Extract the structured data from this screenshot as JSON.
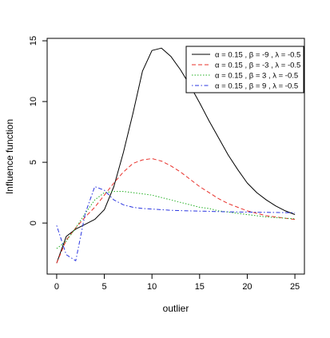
{
  "chart_data": {
    "type": "line",
    "xlabel": "outlier",
    "ylabel": "Influence function",
    "xlim": [
      -1,
      26
    ],
    "ylim": [
      -4.2,
      15.2
    ],
    "x_ticks": [
      0,
      5,
      10,
      15,
      20,
      25
    ],
    "y_ticks": [
      0,
      5,
      10,
      15
    ],
    "legend_position": "top-right",
    "legend_box": true,
    "grid": false,
    "series": [
      {
        "name": "α = 0.15 ,  β = -9 ,  λ = -0.5",
        "color": "#000000",
        "dash": "solid",
        "x": [
          0,
          0.5,
          1,
          2,
          3,
          4,
          5,
          6,
          7,
          8,
          9,
          10,
          11,
          12,
          13,
          14,
          15,
          16,
          17,
          18,
          19,
          20,
          21,
          22,
          23,
          24,
          25
        ],
        "y": [
          -3.3,
          -2.2,
          -1.1,
          -0.5,
          -0.1,
          0.3,
          1.1,
          3.0,
          5.8,
          9.0,
          12.5,
          14.2,
          14.4,
          13.7,
          12.6,
          11.3,
          9.9,
          8.4,
          7.0,
          5.6,
          4.4,
          3.3,
          2.5,
          1.9,
          1.4,
          1.0,
          0.7
        ]
      },
      {
        "name": "α = 0.15 ,  β = -3 ,  λ = -0.5",
        "color": "#e8302a",
        "dash": "dashed",
        "x": [
          0,
          1,
          2,
          3,
          4,
          5,
          6,
          7,
          8,
          9,
          10,
          11,
          12,
          13,
          14,
          15,
          16,
          17,
          18,
          19,
          20,
          21,
          22,
          23,
          24,
          25
        ],
        "y": [
          -3.3,
          -1.4,
          -0.4,
          0.5,
          1.3,
          2.3,
          3.3,
          4.2,
          4.9,
          5.2,
          5.3,
          5.1,
          4.7,
          4.2,
          3.6,
          3.0,
          2.5,
          2.0,
          1.6,
          1.3,
          1.0,
          0.8,
          0.6,
          0.5,
          0.4,
          0.3
        ]
      },
      {
        "name": "α = 0.15 ,  β = 3 ,  λ = -0.5",
        "color": "#24b024",
        "dash": "dotted",
        "x": [
          0,
          1,
          2,
          3,
          4,
          5,
          6,
          7,
          8,
          9,
          10,
          11,
          12,
          13,
          14,
          15,
          16,
          17,
          18,
          19,
          20,
          21,
          22,
          23,
          24,
          25
        ],
        "y": [
          -2.1,
          -1.5,
          -0.4,
          0.8,
          1.9,
          2.5,
          2.6,
          2.6,
          2.5,
          2.4,
          2.3,
          2.1,
          1.9,
          1.7,
          1.5,
          1.3,
          1.2,
          1.0,
          0.9,
          0.8,
          0.7,
          0.6,
          0.5,
          0.45,
          0.4,
          0.35
        ]
      },
      {
        "name": "α = 0.15 ,  β = 9 ,  λ = -0.5",
        "color": "#2a35e0",
        "dash": "dotdash",
        "x": [
          0,
          1,
          2,
          3,
          4,
          5,
          6,
          7,
          8,
          9,
          10,
          11,
          12,
          13,
          14,
          15,
          16,
          17,
          18,
          19,
          20,
          21,
          22,
          23,
          24,
          25
        ],
        "y": [
          -0.2,
          -2.6,
          -3.1,
          0.8,
          3.0,
          2.7,
          1.9,
          1.5,
          1.3,
          1.2,
          1.15,
          1.1,
          1.05,
          1.02,
          1.0,
          0.98,
          0.96,
          0.94,
          0.92,
          0.91,
          0.9,
          0.89,
          0.88,
          0.87,
          0.86,
          0.85
        ]
      }
    ]
  }
}
